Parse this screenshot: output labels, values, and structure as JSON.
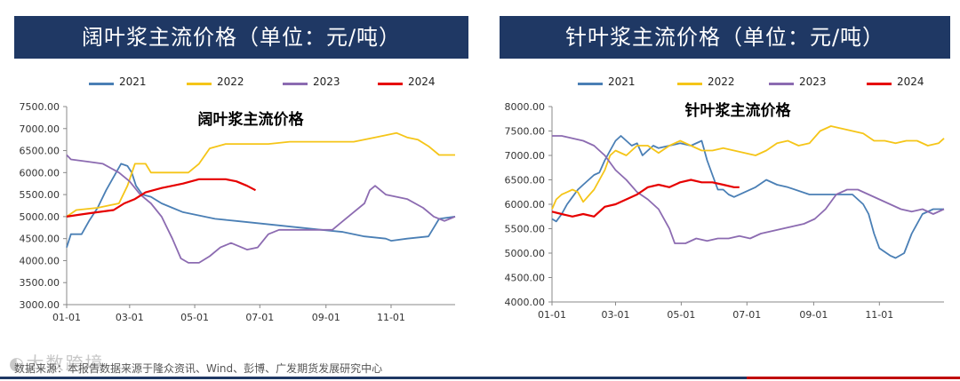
{
  "colors": {
    "2021": "#4a7fb5",
    "2022": "#f5c518",
    "2023": "#8c6bb1",
    "2024": "#e60000",
    "header_bg": "#1f3864"
  },
  "watermark": {
    "text": "大数跨境",
    "icon": "wechat-logo-icon"
  },
  "source": "数据来源：本报告数据来源于隆众资讯、Wind、彭博、广发期货发展研究中心",
  "chart_data": [
    {
      "type": "line",
      "header": "阔叶浆主流价格（单位：元/吨）",
      "title": "阔叶浆主流价格",
      "ylim": [
        3000,
        7500
      ],
      "yticks": [
        "3000.00",
        "3500.00",
        "4000.00",
        "4500.00",
        "5000.00",
        "5500.00",
        "6000.00",
        "6500.00",
        "7000.00",
        "7500.00"
      ],
      "xlim": [
        1,
        365
      ],
      "xticks": [
        {
          "label": "01-01",
          "day": 1
        },
        {
          "label": "03-01",
          "day": 60
        },
        {
          "label": "05-01",
          "day": 121
        },
        {
          "label": "07-01",
          "day": 182
        },
        {
          "label": "09-01",
          "day": 244
        },
        {
          "label": "11-01",
          "day": 305
        }
      ],
      "series": [
        {
          "name": "2021",
          "points": [
            [
              1,
              4300
            ],
            [
              5,
              4600
            ],
            [
              15,
              4600
            ],
            [
              22,
              4900
            ],
            [
              30,
              5200
            ],
            [
              38,
              5600
            ],
            [
              45,
              5900
            ],
            [
              52,
              6200
            ],
            [
              58,
              6150
            ],
            [
              62,
              6000
            ],
            [
              66,
              5700
            ],
            [
              72,
              5500
            ],
            [
              80,
              5450
            ],
            [
              90,
              5300
            ],
            [
              100,
              5200
            ],
            [
              110,
              5100
            ],
            [
              120,
              5050
            ],
            [
              130,
              5000
            ],
            [
              140,
              4950
            ],
            [
              160,
              4900
            ],
            [
              180,
              4850
            ],
            [
              200,
              4800
            ],
            [
              220,
              4750
            ],
            [
              240,
              4700
            ],
            [
              260,
              4650
            ],
            [
              280,
              4550
            ],
            [
              300,
              4500
            ],
            [
              305,
              4450
            ],
            [
              320,
              4500
            ],
            [
              340,
              4550
            ],
            [
              350,
              4950
            ],
            [
              365,
              5000
            ]
          ]
        },
        {
          "name": "2022",
          "points": [
            [
              1,
              5000
            ],
            [
              10,
              5150
            ],
            [
              30,
              5200
            ],
            [
              50,
              5300
            ],
            [
              58,
              5700
            ],
            [
              65,
              6200
            ],
            [
              75,
              6200
            ],
            [
              80,
              6000
            ],
            [
              100,
              6000
            ],
            [
              115,
              6000
            ],
            [
              125,
              6200
            ],
            [
              135,
              6550
            ],
            [
              150,
              6650
            ],
            [
              190,
              6650
            ],
            [
              210,
              6700
            ],
            [
              240,
              6700
            ],
            [
              270,
              6700
            ],
            [
              290,
              6800
            ],
            [
              310,
              6900
            ],
            [
              320,
              6800
            ],
            [
              330,
              6750
            ],
            [
              340,
              6600
            ],
            [
              350,
              6400
            ],
            [
              365,
              6400
            ]
          ]
        },
        {
          "name": "2023",
          "points": [
            [
              1,
              6400
            ],
            [
              5,
              6300
            ],
            [
              20,
              6250
            ],
            [
              35,
              6200
            ],
            [
              50,
              6000
            ],
            [
              60,
              5800
            ],
            [
              70,
              5500
            ],
            [
              80,
              5300
            ],
            [
              90,
              5000
            ],
            [
              100,
              4500
            ],
            [
              108,
              4050
            ],
            [
              115,
              3950
            ],
            [
              125,
              3950
            ],
            [
              135,
              4100
            ],
            [
              145,
              4300
            ],
            [
              155,
              4400
            ],
            [
              165,
              4300
            ],
            [
              170,
              4250
            ],
            [
              180,
              4300
            ],
            [
              190,
              4600
            ],
            [
              200,
              4700
            ],
            [
              210,
              4700
            ],
            [
              220,
              4700
            ],
            [
              240,
              4700
            ],
            [
              250,
              4700
            ],
            [
              260,
              4900
            ],
            [
              270,
              5100
            ],
            [
              280,
              5300
            ],
            [
              285,
              5600
            ],
            [
              290,
              5700
            ],
            [
              300,
              5500
            ],
            [
              320,
              5400
            ],
            [
              335,
              5200
            ],
            [
              345,
              5000
            ],
            [
              355,
              4900
            ],
            [
              365,
              5000
            ]
          ]
        },
        {
          "name": "2024",
          "points": [
            [
              1,
              5000
            ],
            [
              15,
              5050
            ],
            [
              30,
              5100
            ],
            [
              45,
              5150
            ],
            [
              55,
              5300
            ],
            [
              65,
              5400
            ],
            [
              75,
              5550
            ],
            [
              90,
              5650
            ],
            [
              100,
              5700
            ],
            [
              110,
              5750
            ],
            [
              125,
              5850
            ],
            [
              140,
              5850
            ],
            [
              150,
              5850
            ],
            [
              160,
              5800
            ],
            [
              170,
              5700
            ],
            [
              178,
              5600
            ]
          ]
        }
      ]
    },
    {
      "type": "line",
      "header": "针叶浆主流价格（单位：元/吨）",
      "title": "针叶浆主流价格",
      "ylim": [
        4000,
        8000
      ],
      "yticks": [
        "4000.00",
        "4500.00",
        "5000.00",
        "5500.00",
        "6000.00",
        "6500.00",
        "7000.00",
        "7500.00",
        "8000.00"
      ],
      "xlim": [
        1,
        365
      ],
      "xticks": [
        {
          "label": "01-01",
          "day": 1
        },
        {
          "label": "03-01",
          "day": 60
        },
        {
          "label": "05-01",
          "day": 121
        },
        {
          "label": "07-01",
          "day": 182
        },
        {
          "label": "09-01",
          "day": 244
        },
        {
          "label": "11-01",
          "day": 305
        }
      ],
      "series": [
        {
          "name": "2021",
          "points": [
            [
              1,
              5700
            ],
            [
              5,
              5650
            ],
            [
              10,
              5800
            ],
            [
              15,
              6000
            ],
            [
              20,
              6150
            ],
            [
              25,
              6300
            ],
            [
              30,
              6400
            ],
            [
              35,
              6500
            ],
            [
              40,
              6600
            ],
            [
              45,
              6650
            ],
            [
              50,
              6900
            ],
            [
              55,
              7100
            ],
            [
              60,
              7300
            ],
            [
              65,
              7400
            ],
            [
              70,
              7300
            ],
            [
              75,
              7200
            ],
            [
              80,
              7250
            ],
            [
              85,
              7000
            ],
            [
              90,
              7100
            ],
            [
              95,
              7200
            ],
            [
              100,
              7150
            ],
            [
              110,
              7200
            ],
            [
              120,
              7250
            ],
            [
              130,
              7200
            ],
            [
              140,
              7300
            ],
            [
              145,
              6900
            ],
            [
              150,
              6600
            ],
            [
              155,
              6300
            ],
            [
              160,
              6300
            ],
            [
              165,
              6200
            ],
            [
              170,
              6150
            ],
            [
              180,
              6250
            ],
            [
              190,
              6350
            ],
            [
              200,
              6500
            ],
            [
              210,
              6400
            ],
            [
              220,
              6350
            ],
            [
              240,
              6200
            ],
            [
              260,
              6200
            ],
            [
              280,
              6200
            ],
            [
              290,
              6000
            ],
            [
              295,
              5800
            ],
            [
              300,
              5400
            ],
            [
              305,
              5100
            ],
            [
              315,
              4950
            ],
            [
              320,
              4900
            ],
            [
              328,
              5000
            ],
            [
              335,
              5400
            ],
            [
              345,
              5800
            ],
            [
              355,
              5900
            ],
            [
              365,
              5900
            ]
          ]
        },
        {
          "name": "2022",
          "points": [
            [
              1,
              5900
            ],
            [
              5,
              6100
            ],
            [
              10,
              6200
            ],
            [
              15,
              6250
            ],
            [
              20,
              6300
            ],
            [
              25,
              6250
            ],
            [
              30,
              6050
            ],
            [
              40,
              6300
            ],
            [
              50,
              6700
            ],
            [
              55,
              7000
            ],
            [
              60,
              7100
            ],
            [
              70,
              7000
            ],
            [
              80,
              7200
            ],
            [
              90,
              7200
            ],
            [
              100,
              7050
            ],
            [
              110,
              7200
            ],
            [
              120,
              7300
            ],
            [
              130,
              7200
            ],
            [
              140,
              7100
            ],
            [
              150,
              7100
            ],
            [
              160,
              7150
            ],
            [
              170,
              7100
            ],
            [
              180,
              7050
            ],
            [
              190,
              7000
            ],
            [
              200,
              7100
            ],
            [
              210,
              7250
            ],
            [
              220,
              7300
            ],
            [
              230,
              7200
            ],
            [
              240,
              7250
            ],
            [
              250,
              7500
            ],
            [
              260,
              7600
            ],
            [
              270,
              7550
            ],
            [
              280,
              7500
            ],
            [
              290,
              7450
            ],
            [
              300,
              7300
            ],
            [
              310,
              7300
            ],
            [
              320,
              7250
            ],
            [
              330,
              7300
            ],
            [
              340,
              7300
            ],
            [
              350,
              7200
            ],
            [
              360,
              7250
            ],
            [
              365,
              7350
            ]
          ]
        },
        {
          "name": "2023",
          "points": [
            [
              1,
              7400
            ],
            [
              10,
              7400
            ],
            [
              20,
              7350
            ],
            [
              30,
              7300
            ],
            [
              40,
              7200
            ],
            [
              45,
              7100
            ],
            [
              50,
              7000
            ],
            [
              60,
              6700
            ],
            [
              70,
              6500
            ],
            [
              80,
              6250
            ],
            [
              90,
              6100
            ],
            [
              100,
              5900
            ],
            [
              110,
              5500
            ],
            [
              115,
              5200
            ],
            [
              125,
              5200
            ],
            [
              135,
              5300
            ],
            [
              145,
              5250
            ],
            [
              155,
              5300
            ],
            [
              165,
              5300
            ],
            [
              175,
              5350
            ],
            [
              185,
              5300
            ],
            [
              195,
              5400
            ],
            [
              205,
              5450
            ],
            [
              215,
              5500
            ],
            [
              225,
              5550
            ],
            [
              235,
              5600
            ],
            [
              245,
              5700
            ],
            [
              255,
              5900
            ],
            [
              265,
              6200
            ],
            [
              275,
              6300
            ],
            [
              285,
              6300
            ],
            [
              295,
              6200
            ],
            [
              305,
              6100
            ],
            [
              315,
              6000
            ],
            [
              325,
              5900
            ],
            [
              335,
              5850
            ],
            [
              345,
              5900
            ],
            [
              355,
              5800
            ],
            [
              365,
              5900
            ]
          ]
        },
        {
          "name": "2024",
          "points": [
            [
              1,
              5850
            ],
            [
              10,
              5800
            ],
            [
              20,
              5750
            ],
            [
              30,
              5800
            ],
            [
              40,
              5750
            ],
            [
              50,
              5950
            ],
            [
              60,
              6000
            ],
            [
              70,
              6100
            ],
            [
              80,
              6200
            ],
            [
              90,
              6350
            ],
            [
              100,
              6400
            ],
            [
              110,
              6350
            ],
            [
              120,
              6450
            ],
            [
              130,
              6500
            ],
            [
              140,
              6450
            ],
            [
              150,
              6450
            ],
            [
              160,
              6400
            ],
            [
              170,
              6350
            ],
            [
              175,
              6350
            ]
          ]
        }
      ]
    }
  ]
}
